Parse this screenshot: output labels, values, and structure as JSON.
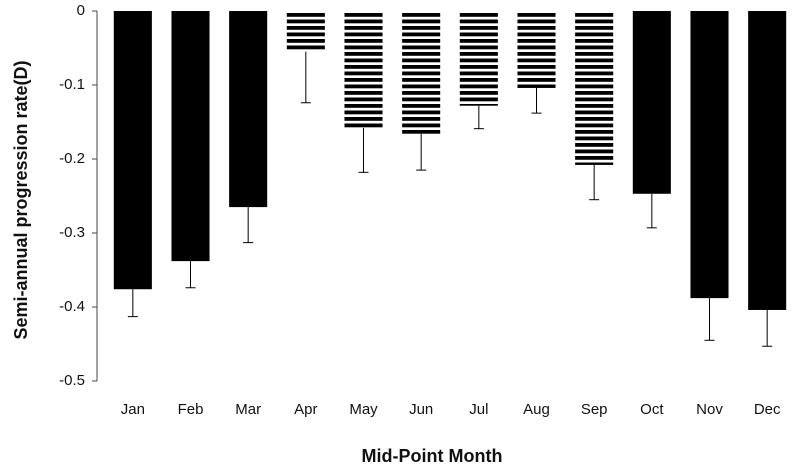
{
  "chart_data": {
    "type": "bar",
    "x_label": "Mid-Point Month",
    "y_label": "Semi-annual progression  rate(D)",
    "categories": [
      "Jan",
      "Feb",
      "Mar",
      "Apr",
      "May",
      "Jun",
      "Jul",
      "Aug",
      "Sep",
      "Oct",
      "Nov",
      "Dec"
    ],
    "values": [
      -0.376,
      -0.338,
      -0.265,
      -0.055,
      -0.158,
      -0.166,
      -0.128,
      -0.104,
      -0.208,
      -0.247,
      -0.388,
      -0.404
    ],
    "errors": [
      0.037,
      0.036,
      0.048,
      0.069,
      0.06,
      0.049,
      0.031,
      0.034,
      0.047,
      0.046,
      0.057,
      0.049
    ],
    "bar_styles": [
      "solid",
      "solid",
      "solid",
      "striped",
      "striped",
      "striped",
      "striped",
      "striped",
      "striped",
      "solid",
      "solid",
      "solid"
    ],
    "color": "#000000",
    "ylim": [
      -0.5,
      0
    ],
    "yticks": [
      0,
      -0.1,
      -0.2,
      -0.3,
      -0.4,
      -0.5
    ]
  }
}
